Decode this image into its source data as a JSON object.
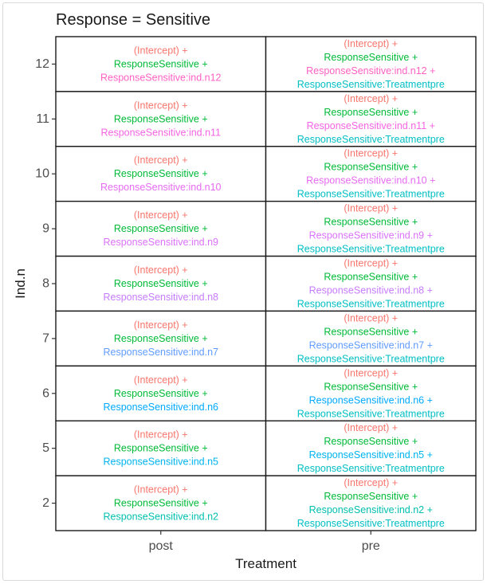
{
  "chart_data": {
    "type": "table",
    "title": "Response = Sensitive",
    "xlabel": "Treatment",
    "ylabel": "Ind.n",
    "x_categories": [
      "post",
      "pre"
    ],
    "y_categories": [
      "12",
      "11",
      "10",
      "9",
      "8",
      "7",
      "6",
      "5",
      "2"
    ],
    "term_colors": {
      "intercept": "#F8766D",
      "response": "#00BA38",
      "treatment": "#00BFC4",
      "ind.n12": "#FF61C3",
      "ind.n11": "#F564E3",
      "ind.n10": "#E76BF3",
      "ind.n9": "#DB72FB",
      "ind.n8": "#C77CFF",
      "ind.n7": "#619CFF",
      "ind.n6": "#00A9FF",
      "ind.n5": "#00B4EF",
      "ind.n2": "#00BFAF"
    },
    "cells": [
      {
        "y": "12",
        "x": "post",
        "lines": [
          {
            "text": "(Intercept) +",
            "term": "intercept"
          },
          {
            "text": "ResponseSensitive +",
            "term": "response"
          },
          {
            "text": "ResponseSensitive:ind.n12",
            "term": "ind.n12"
          }
        ]
      },
      {
        "y": "12",
        "x": "pre",
        "lines": [
          {
            "text": "(Intercept) +",
            "term": "intercept"
          },
          {
            "text": "ResponseSensitive +",
            "term": "response"
          },
          {
            "text": "ResponseSensitive:ind.n12 +",
            "term": "ind.n12"
          },
          {
            "text": "ResponseSensitive:Treatmentpre",
            "term": "treatment"
          }
        ]
      },
      {
        "y": "11",
        "x": "post",
        "lines": [
          {
            "text": "(Intercept) +",
            "term": "intercept"
          },
          {
            "text": "ResponseSensitive +",
            "term": "response"
          },
          {
            "text": "ResponseSensitive:ind.n11",
            "term": "ind.n11"
          }
        ]
      },
      {
        "y": "11",
        "x": "pre",
        "lines": [
          {
            "text": "(Intercept) +",
            "term": "intercept"
          },
          {
            "text": "ResponseSensitive +",
            "term": "response"
          },
          {
            "text": "ResponseSensitive:ind.n11 +",
            "term": "ind.n11"
          },
          {
            "text": "ResponseSensitive:Treatmentpre",
            "term": "treatment"
          }
        ]
      },
      {
        "y": "10",
        "x": "post",
        "lines": [
          {
            "text": "(Intercept) +",
            "term": "intercept"
          },
          {
            "text": "ResponseSensitive +",
            "term": "response"
          },
          {
            "text": "ResponseSensitive:ind.n10",
            "term": "ind.n10"
          }
        ]
      },
      {
        "y": "10",
        "x": "pre",
        "lines": [
          {
            "text": "(Intercept) +",
            "term": "intercept"
          },
          {
            "text": "ResponseSensitive +",
            "term": "response"
          },
          {
            "text": "ResponseSensitive:ind.n10 +",
            "term": "ind.n10"
          },
          {
            "text": "ResponseSensitive:Treatmentpre",
            "term": "treatment"
          }
        ]
      },
      {
        "y": "9",
        "x": "post",
        "lines": [
          {
            "text": "(Intercept) +",
            "term": "intercept"
          },
          {
            "text": "ResponseSensitive +",
            "term": "response"
          },
          {
            "text": "ResponseSensitive:ind.n9",
            "term": "ind.n9"
          }
        ]
      },
      {
        "y": "9",
        "x": "pre",
        "lines": [
          {
            "text": "(Intercept) +",
            "term": "intercept"
          },
          {
            "text": "ResponseSensitive +",
            "term": "response"
          },
          {
            "text": "ResponseSensitive:ind.n9 +",
            "term": "ind.n9"
          },
          {
            "text": "ResponseSensitive:Treatmentpre",
            "term": "treatment"
          }
        ]
      },
      {
        "y": "8",
        "x": "post",
        "lines": [
          {
            "text": "(Intercept) +",
            "term": "intercept"
          },
          {
            "text": "ResponseSensitive +",
            "term": "response"
          },
          {
            "text": "ResponseSensitive:ind.n8",
            "term": "ind.n8"
          }
        ]
      },
      {
        "y": "8",
        "x": "pre",
        "lines": [
          {
            "text": "(Intercept) +",
            "term": "intercept"
          },
          {
            "text": "ResponseSensitive +",
            "term": "response"
          },
          {
            "text": "ResponseSensitive:ind.n8 +",
            "term": "ind.n8"
          },
          {
            "text": "ResponseSensitive:Treatmentpre",
            "term": "treatment"
          }
        ]
      },
      {
        "y": "7",
        "x": "post",
        "lines": [
          {
            "text": "(Intercept) +",
            "term": "intercept"
          },
          {
            "text": "ResponseSensitive +",
            "term": "response"
          },
          {
            "text": "ResponseSensitive:ind.n7",
            "term": "ind.n7"
          }
        ]
      },
      {
        "y": "7",
        "x": "pre",
        "lines": [
          {
            "text": "(Intercept) +",
            "term": "intercept"
          },
          {
            "text": "ResponseSensitive +",
            "term": "response"
          },
          {
            "text": "ResponseSensitive:ind.n7 +",
            "term": "ind.n7"
          },
          {
            "text": "ResponseSensitive:Treatmentpre",
            "term": "treatment"
          }
        ]
      },
      {
        "y": "6",
        "x": "post",
        "lines": [
          {
            "text": "(Intercept) +",
            "term": "intercept"
          },
          {
            "text": "ResponseSensitive +",
            "term": "response"
          },
          {
            "text": "ResponseSensitive:ind.n6",
            "term": "ind.n6"
          }
        ]
      },
      {
        "y": "6",
        "x": "pre",
        "lines": [
          {
            "text": "(Intercept) +",
            "term": "intercept"
          },
          {
            "text": "ResponseSensitive +",
            "term": "response"
          },
          {
            "text": "ResponseSensitive:ind.n6 +",
            "term": "ind.n6"
          },
          {
            "text": "ResponseSensitive:Treatmentpre",
            "term": "treatment"
          }
        ]
      },
      {
        "y": "5",
        "x": "post",
        "lines": [
          {
            "text": "(Intercept) +",
            "term": "intercept"
          },
          {
            "text": "ResponseSensitive +",
            "term": "response"
          },
          {
            "text": "ResponseSensitive:ind.n5",
            "term": "ind.n5"
          }
        ]
      },
      {
        "y": "5",
        "x": "pre",
        "lines": [
          {
            "text": "(Intercept) +",
            "term": "intercept"
          },
          {
            "text": "ResponseSensitive +",
            "term": "response"
          },
          {
            "text": "ResponseSensitive:ind.n5 +",
            "term": "ind.n5"
          },
          {
            "text": "ResponseSensitive:Treatmentpre",
            "term": "treatment"
          }
        ]
      },
      {
        "y": "2",
        "x": "post",
        "lines": [
          {
            "text": "(Intercept) +",
            "term": "intercept"
          },
          {
            "text": "ResponseSensitive +",
            "term": "response"
          },
          {
            "text": "ResponseSensitive:ind.n2",
            "term": "ind.n2"
          }
        ]
      },
      {
        "y": "2",
        "x": "pre",
        "lines": [
          {
            "text": "(Intercept) +",
            "term": "intercept"
          },
          {
            "text": "ResponseSensitive +",
            "term": "response"
          },
          {
            "text": "ResponseSensitive:ind.n2 +",
            "term": "ind.n2"
          },
          {
            "text": "ResponseSensitive:Treatmentpre",
            "term": "treatment"
          }
        ]
      }
    ]
  }
}
